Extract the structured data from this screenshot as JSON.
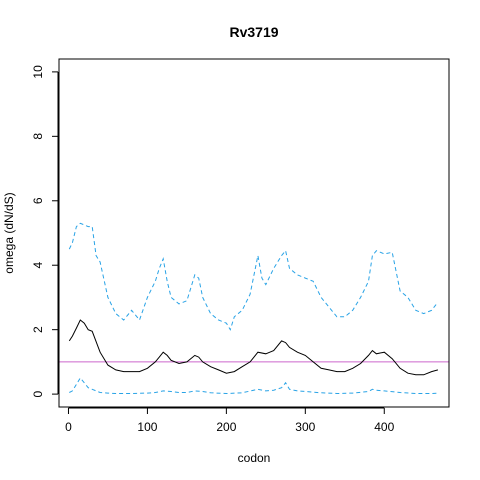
{
  "chart_data": {
    "type": "line",
    "title": "Rv3719",
    "xlabel": "codon",
    "ylabel": "omega (dN/dS)",
    "xlim": [
      -12,
      482
    ],
    "ylim": [
      -0.4,
      10.4
    ],
    "x_ticks": [
      0,
      100,
      200,
      300,
      400
    ],
    "x_tick_labels": [
      "0",
      "100",
      "200",
      "300",
      "400"
    ],
    "y_ticks": [
      0,
      2,
      4,
      6,
      8,
      10
    ],
    "y_tick_labels": [
      "0",
      "2",
      "4",
      "6",
      "8",
      "10"
    ],
    "grid": false,
    "legend": "none",
    "reference_line": {
      "y": 1,
      "color": "#cc66cc"
    },
    "series": [
      {
        "style": "solid",
        "color": "#000000",
        "x": [
          1,
          5,
          10,
          15,
          20,
          25,
          30,
          40,
          50,
          60,
          70,
          80,
          90,
          100,
          110,
          115,
          120,
          125,
          130,
          140,
          150,
          160,
          165,
          170,
          180,
          190,
          200,
          210,
          220,
          230,
          240,
          250,
          255,
          260,
          270,
          275,
          280,
          290,
          300,
          310,
          320,
          330,
          340,
          350,
          360,
          370,
          380,
          385,
          390,
          400,
          410,
          420,
          430,
          440,
          450,
          460,
          468
        ],
        "y": [
          1.65,
          1.8,
          2.05,
          2.3,
          2.2,
          2.0,
          1.95,
          1.3,
          0.9,
          0.75,
          0.7,
          0.7,
          0.7,
          0.8,
          1.0,
          1.15,
          1.3,
          1.2,
          1.05,
          0.95,
          1.0,
          1.2,
          1.15,
          1.0,
          0.85,
          0.75,
          0.65,
          0.7,
          0.85,
          1.0,
          1.3,
          1.25,
          1.3,
          1.35,
          1.65,
          1.6,
          1.45,
          1.3,
          1.2,
          1.0,
          0.8,
          0.75,
          0.7,
          0.7,
          0.8,
          0.95,
          1.2,
          1.35,
          1.25,
          1.3,
          1.1,
          0.8,
          0.65,
          0.6,
          0.6,
          0.7,
          0.75
        ]
      },
      {
        "style": "dashed",
        "color": "#29a3e6",
        "x": [
          1,
          5,
          10,
          15,
          20,
          25,
          30,
          35,
          40,
          50,
          60,
          70,
          80,
          90,
          100,
          110,
          115,
          120,
          125,
          130,
          140,
          150,
          160,
          165,
          170,
          180,
          190,
          200,
          205,
          210,
          220,
          230,
          240,
          245,
          250,
          260,
          270,
          275,
          280,
          290,
          300,
          310,
          320,
          330,
          340,
          350,
          360,
          370,
          380,
          385,
          390,
          400,
          410,
          420,
          430,
          440,
          450,
          460,
          468
        ],
        "y": [
          4.5,
          4.7,
          5.2,
          5.3,
          5.25,
          5.2,
          5.2,
          4.3,
          4.1,
          3.0,
          2.5,
          2.3,
          2.6,
          2.3,
          3.0,
          3.5,
          3.9,
          4.2,
          3.5,
          3.0,
          2.8,
          2.9,
          3.7,
          3.6,
          3.0,
          2.5,
          2.3,
          2.2,
          2.0,
          2.4,
          2.6,
          3.1,
          4.3,
          3.6,
          3.4,
          3.9,
          4.3,
          4.45,
          3.9,
          3.7,
          3.6,
          3.5,
          3.0,
          2.7,
          2.4,
          2.4,
          2.6,
          3.0,
          3.5,
          4.3,
          4.45,
          4.35,
          4.4,
          3.2,
          3.0,
          2.6,
          2.5,
          2.6,
          2.85
        ]
      },
      {
        "style": "dashed",
        "color": "#29a3e6",
        "x": [
          1,
          5,
          10,
          15,
          20,
          25,
          30,
          40,
          50,
          60,
          80,
          100,
          110,
          120,
          130,
          140,
          150,
          160,
          170,
          180,
          200,
          220,
          240,
          250,
          260,
          270,
          275,
          280,
          290,
          300,
          320,
          340,
          360,
          380,
          385,
          390,
          400,
          420,
          440,
          460,
          468
        ],
        "y": [
          0.05,
          0.1,
          0.3,
          0.5,
          0.35,
          0.2,
          0.15,
          0.05,
          0.03,
          0.02,
          0.02,
          0.03,
          0.05,
          0.1,
          0.08,
          0.05,
          0.05,
          0.1,
          0.08,
          0.04,
          0.02,
          0.04,
          0.15,
          0.1,
          0.12,
          0.2,
          0.35,
          0.15,
          0.1,
          0.08,
          0.04,
          0.02,
          0.03,
          0.08,
          0.15,
          0.12,
          0.1,
          0.05,
          0.02,
          0.02,
          0.03
        ]
      }
    ]
  }
}
